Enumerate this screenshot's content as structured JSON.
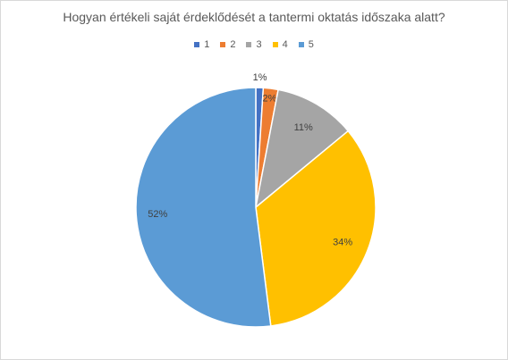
{
  "chart_data": {
    "type": "pie",
    "title": "Hogyan értékeli saját érdeklődését a tantermi oktatás időszaka alatt?",
    "categories": [
      "1",
      "2",
      "3",
      "4",
      "5"
    ],
    "values": [
      1,
      2,
      11,
      34,
      52
    ],
    "labels": [
      "1%",
      "2%",
      "11%",
      "34%",
      "52%"
    ],
    "colors": [
      "#4472C4",
      "#ED7D31",
      "#A5A5A5",
      "#FFC000",
      "#5B9BD5"
    ],
    "legend_position": "top"
  }
}
